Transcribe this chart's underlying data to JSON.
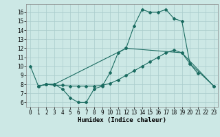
{
  "xlabel": "Humidex (Indice chaleur)",
  "bg_color": "#cce8e5",
  "grid_color": "#aacccc",
  "line_color": "#1a6b60",
  "xlim": [
    -0.5,
    23.5
  ],
  "ylim": [
    5.5,
    16.9
  ],
  "yticks": [
    6,
    7,
    8,
    9,
    10,
    11,
    12,
    13,
    14,
    15,
    16
  ],
  "xticks": [
    0,
    1,
    2,
    3,
    4,
    5,
    6,
    7,
    8,
    9,
    10,
    11,
    12,
    13,
    14,
    15,
    16,
    17,
    18,
    19,
    20,
    21,
    22,
    23
  ],
  "series1_x": [
    0,
    1,
    2,
    3,
    4,
    5,
    6,
    7,
    8,
    9,
    10,
    11,
    12,
    13,
    14,
    15,
    16,
    17,
    18,
    19,
    20,
    21
  ],
  "series1_y": [
    10,
    7.8,
    8.0,
    8.0,
    7.5,
    6.5,
    6.0,
    6.0,
    7.5,
    7.8,
    9.3,
    11.5,
    12.0,
    14.5,
    16.3,
    16.0,
    16.0,
    16.3,
    15.3,
    15.0,
    10.3,
    9.2
  ],
  "series2_x": [
    1,
    2,
    3,
    12,
    19,
    20,
    23
  ],
  "series2_y": [
    7.8,
    8.0,
    8.0,
    12.0,
    11.5,
    10.3,
    7.8
  ],
  "series3_x": [
    1,
    2,
    3,
    4,
    5,
    6,
    7,
    8,
    9,
    10,
    11,
    12,
    13,
    14,
    15,
    16,
    17,
    18,
    19,
    23
  ],
  "series3_y": [
    7.8,
    8.0,
    7.9,
    7.9,
    7.8,
    7.8,
    7.8,
    7.8,
    7.9,
    8.1,
    8.5,
    9.0,
    9.5,
    10.0,
    10.5,
    11.0,
    11.5,
    11.8,
    11.5,
    7.8
  ],
  "xlabel_fontsize": 6.5,
  "tick_fontsize": 5.5
}
